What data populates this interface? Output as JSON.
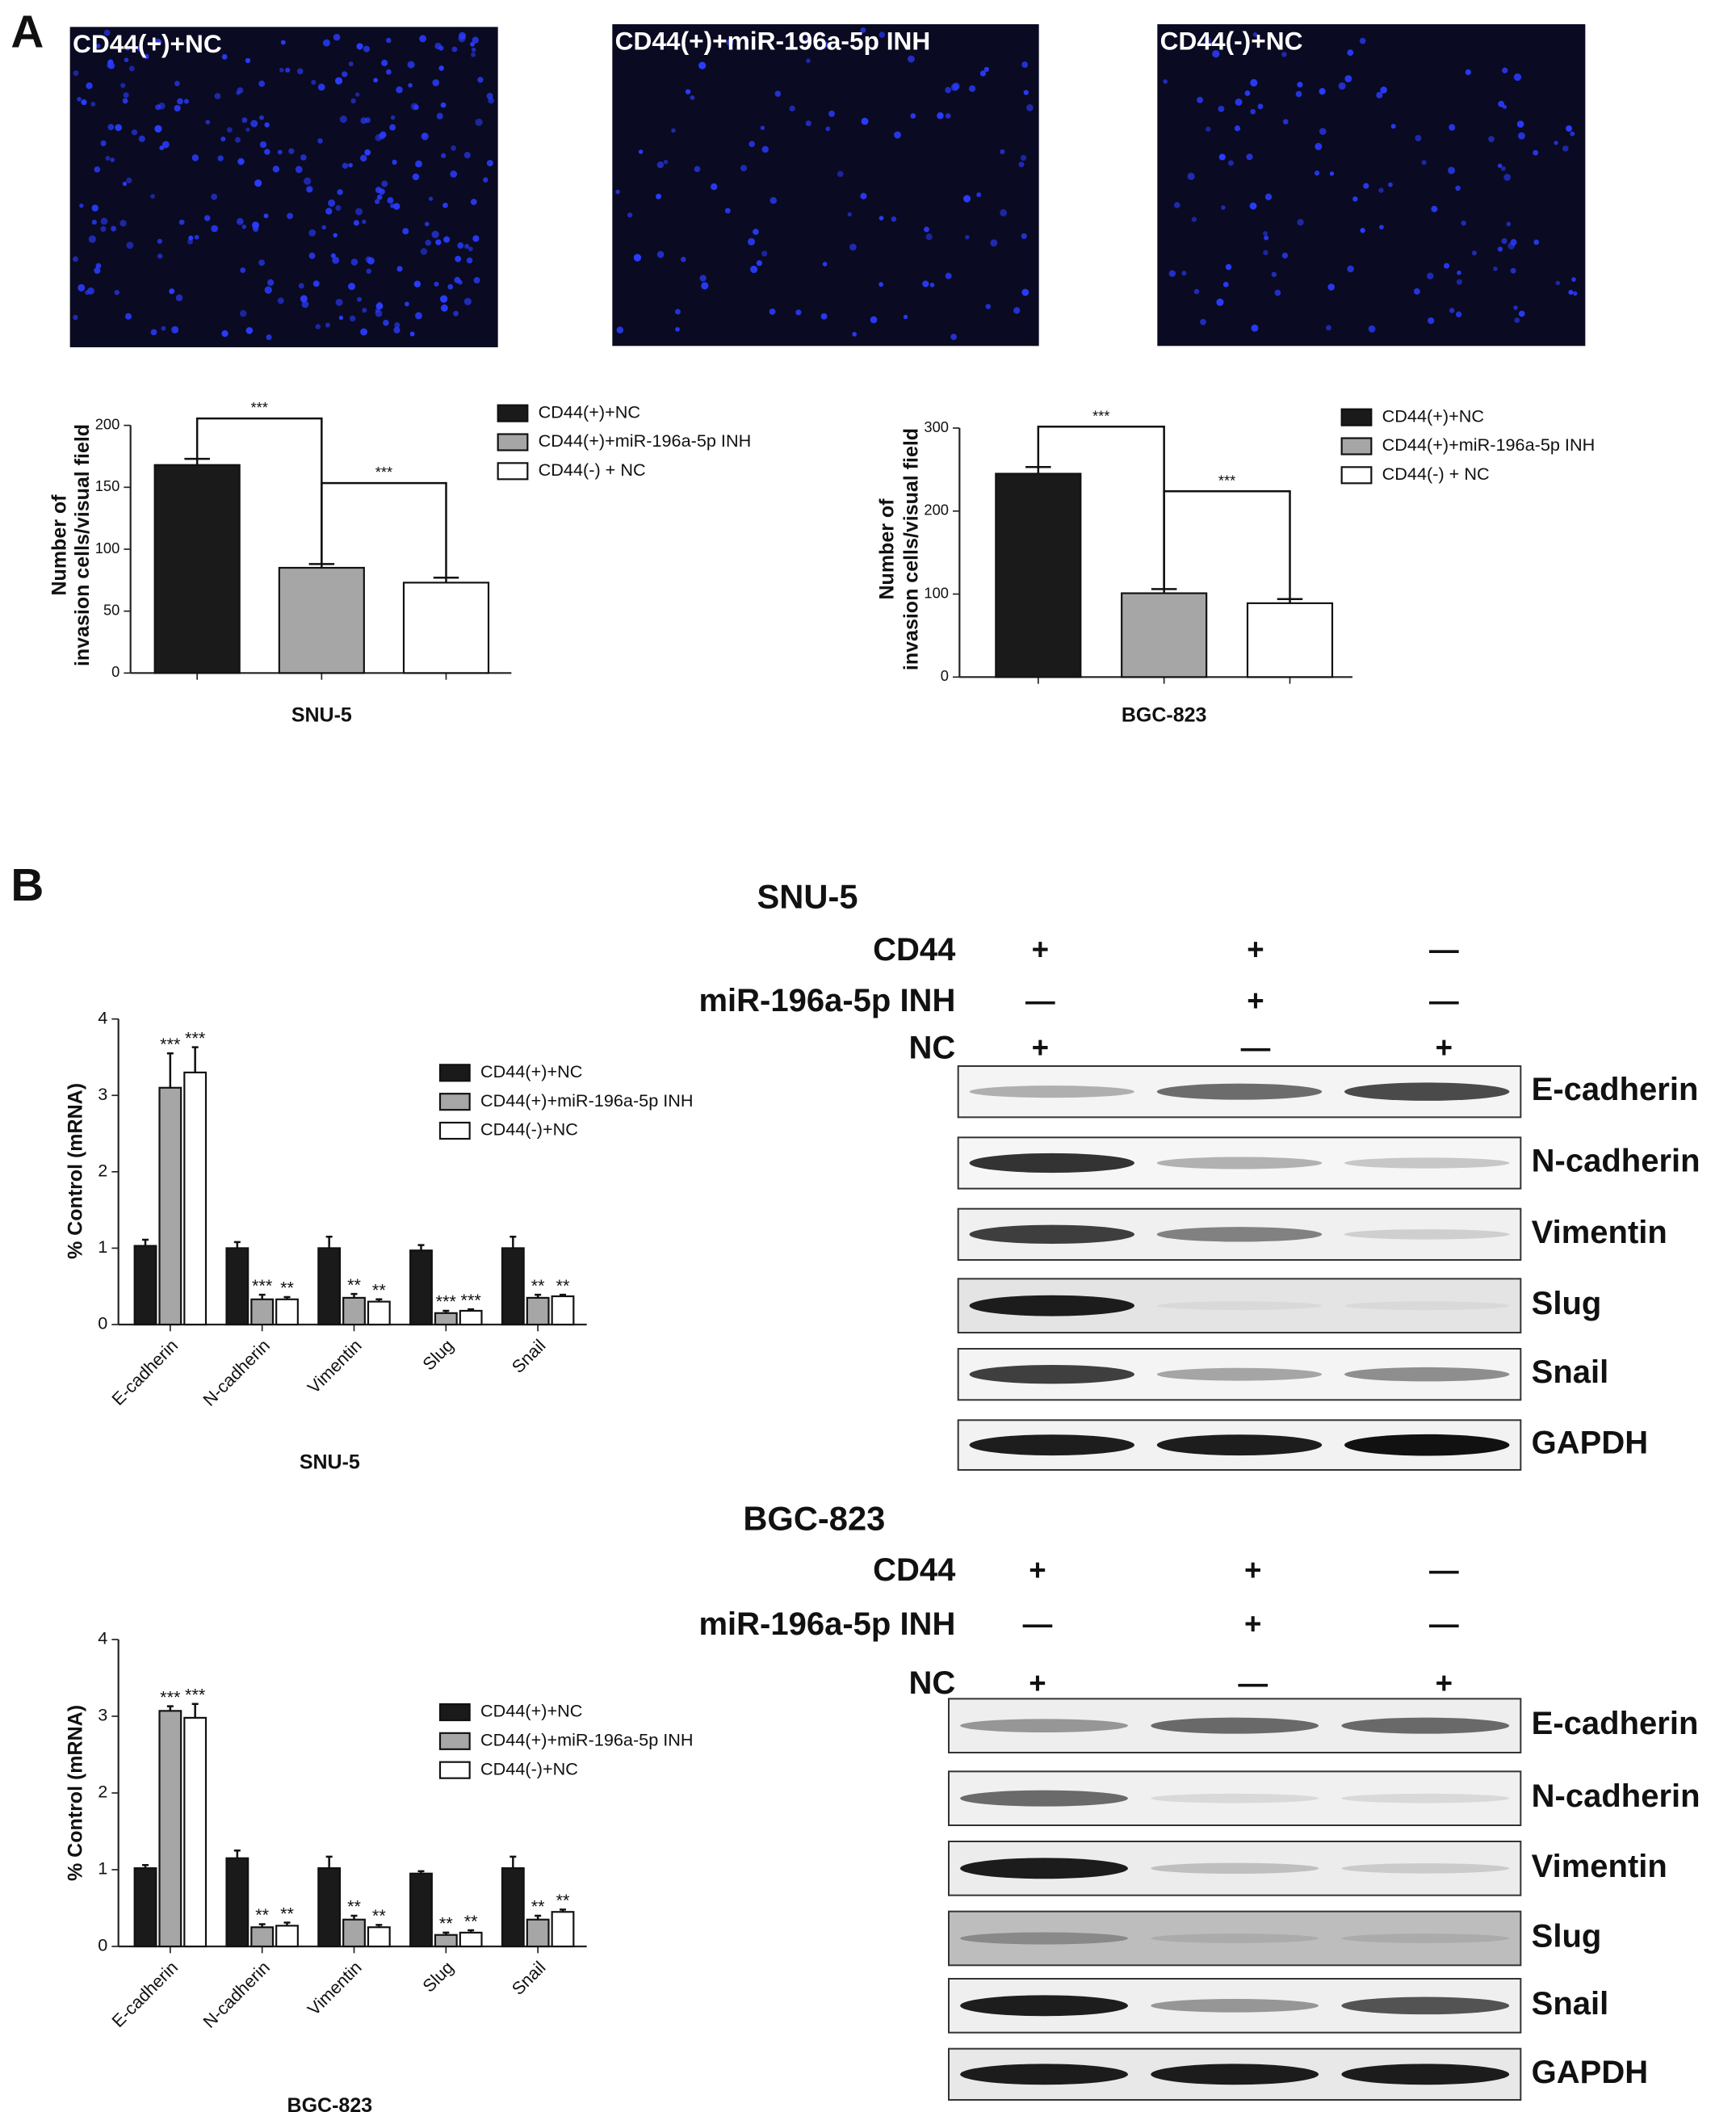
{
  "panel_labels": [
    "A",
    "B"
  ],
  "images": [
    {
      "label": "CD44(+)+NC"
    },
    {
      "label": "CD44(+)+miR-196a-5p INH"
    },
    {
      "label": "CD44(-)+NC"
    }
  ],
  "chart_data": [
    {
      "type": "bar",
      "ylabel": [
        "Number of",
        "invasion cells/visual field"
      ],
      "categories": [
        "SNU-5"
      ],
      "series": [
        {
          "name": "CD44(+)+NC",
          "color": "#1a1a1a",
          "values": [
            168
          ],
          "errors": [
            5
          ]
        },
        {
          "name": "CD44(+)+miR-196a-5p INH",
          "color": "#a6a6a6",
          "values": [
            85
          ],
          "errors": [
            3
          ]
        },
        {
          "name": "CD44(-) + NC",
          "color": "#ffffff",
          "values": [
            73
          ],
          "errors": [
            4
          ]
        }
      ],
      "ylim": [
        0,
        200
      ],
      "yticks": [
        0,
        50,
        100,
        150,
        200
      ],
      "significance": [
        "***",
        "***"
      ]
    },
    {
      "type": "bar",
      "ylabel": [
        "Number of",
        "invasion cells/visual field"
      ],
      "categories": [
        "BGC-823"
      ],
      "series": [
        {
          "name": "CD44(+)+NC",
          "color": "#1a1a1a",
          "values": [
            245
          ],
          "errors": [
            8
          ]
        },
        {
          "name": "CD44(+)+miR-196a-5p INH",
          "color": "#a6a6a6",
          "values": [
            101
          ],
          "errors": [
            5
          ]
        },
        {
          "name": "CD44(-) + NC",
          "color": "#ffffff",
          "values": [
            89
          ],
          "errors": [
            5
          ]
        }
      ],
      "ylim": [
        0,
        300
      ],
      "yticks": [
        0,
        100,
        200,
        300
      ],
      "significance": [
        "***",
        "***"
      ]
    },
    {
      "type": "bar",
      "ylabel": [
        "% Control (mRNA)"
      ],
      "xlabel": "SNU-5",
      "categories": [
        "E-cadherin",
        "N-cadherin",
        "Vimentin",
        "Slug",
        "Snail"
      ],
      "series": [
        {
          "name": "CD44(+)+NC",
          "color": "#1a1a1a",
          "values": [
            1.03,
            1.0,
            1.0,
            0.97,
            1.0
          ],
          "errors": [
            0.08,
            0.08,
            0.15,
            0.07,
            0.15
          ]
        },
        {
          "name": "CD44(+)+miR-196a-5p INH",
          "color": "#a6a6a6",
          "values": [
            3.1,
            0.33,
            0.35,
            0.15,
            0.35
          ],
          "errors": [
            0.45,
            0.06,
            0.05,
            0.03,
            0.04
          ],
          "annotations": [
            "***",
            "***",
            "**",
            "***",
            "**"
          ]
        },
        {
          "name": "CD44(-)+NC",
          "color": "#ffffff",
          "values": [
            3.3,
            0.33,
            0.3,
            0.18,
            0.37
          ],
          "errors": [
            0.33,
            0.03,
            0.03,
            0.02,
            0.02
          ],
          "annotations": [
            "***",
            "**",
            "**",
            "***",
            "**"
          ]
        }
      ],
      "ylim": [
        0,
        4
      ],
      "yticks": [
        0,
        1,
        2,
        3,
        4
      ]
    },
    {
      "type": "bar",
      "ylabel": [
        "% Control (mRNA)"
      ],
      "xlabel": "BGC-823",
      "categories": [
        "E-cadherin",
        "N-cadherin",
        "Vimentin",
        "Slug",
        "Snail"
      ],
      "series": [
        {
          "name": "CD44(+)+NC",
          "color": "#1a1a1a",
          "values": [
            1.02,
            1.15,
            1.02,
            0.95,
            1.02
          ],
          "errors": [
            0.04,
            0.1,
            0.15,
            0.03,
            0.15
          ]
        },
        {
          "name": "CD44(+)+miR-196a-5p INH",
          "color": "#a6a6a6",
          "values": [
            3.07,
            0.25,
            0.35,
            0.15,
            0.35
          ],
          "errors": [
            0.06,
            0.04,
            0.05,
            0.03,
            0.05
          ],
          "annotations": [
            "***",
            "**",
            "**",
            "**",
            "**"
          ]
        },
        {
          "name": "CD44(-)+NC",
          "color": "#ffffff",
          "values": [
            2.98,
            0.27,
            0.25,
            0.18,
            0.45
          ],
          "errors": [
            0.18,
            0.04,
            0.03,
            0.03,
            0.03
          ],
          "annotations": [
            "***",
            "**",
            "**",
            "**",
            "**"
          ]
        }
      ],
      "ylim": [
        0,
        4
      ],
      "yticks": [
        0,
        1,
        2,
        3,
        4
      ]
    }
  ],
  "blots": [
    {
      "title": "SNU-5",
      "conditions": [
        {
          "name": "CD44",
          "signs": [
            "+",
            "+",
            "—"
          ]
        },
        {
          "name": "miR-196a-5p INH",
          "signs": [
            "—",
            "+",
            "—"
          ]
        },
        {
          "name": "NC",
          "signs": [
            "+",
            "—",
            "+"
          ]
        }
      ],
      "proteins": [
        "E-cadherin",
        "N-cadherin",
        "Vimentin",
        "Slug",
        "Snail",
        "GAPDH"
      ]
    },
    {
      "title": "BGC-823",
      "conditions": [
        {
          "name": "CD44",
          "signs": [
            "+",
            "+",
            "—"
          ]
        },
        {
          "name": "miR-196a-5p INH",
          "signs": [
            "—",
            "+",
            "—"
          ]
        },
        {
          "name": "NC",
          "signs": [
            "+",
            "—",
            "+"
          ]
        }
      ],
      "proteins": [
        "E-cadherin",
        "N-cadherin",
        "Vimentin",
        "Slug",
        "Snail",
        "GAPDH"
      ]
    }
  ]
}
